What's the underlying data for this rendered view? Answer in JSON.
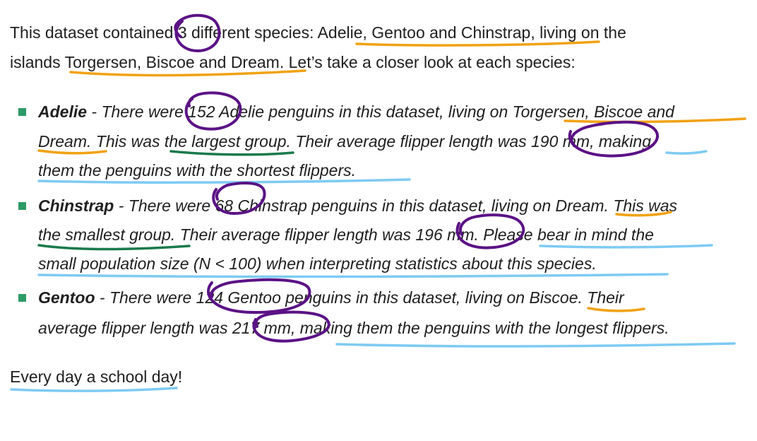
{
  "intro": {
    "line1": "This dataset contained 3 different species: Adelie, Gentoo and Chinstrap, living on the",
    "line2": "islands Torgersen, Biscoe and Dream. Let’s take a closer look at each species:"
  },
  "items": [
    {
      "name": "Adelie",
      "line1_rest": " - There were 152 Adelie penguins in this dataset, living on Torgersen, Biscoe and",
      "line2": "Dream. This was the largest group. Their average flipper length was 190 mm, making",
      "line3": "them the penguins with the shortest flippers."
    },
    {
      "name": "Chinstrap",
      "line1_rest": " - There were 68 Chinstrap penguins in this dataset, living on Dream. This was",
      "line2": "the smallest group. Their average flipper length was 196 mm. Please bear in mind the",
      "line3": "small population size (N < 100) when interpreting statistics about this species."
    },
    {
      "name": "Gentoo",
      "line1_rest": " - There were 124 Gentoo penguins in this dataset, living on Biscoe. Their",
      "line2": "average flipper length was 217 mm, making them the penguins with the longest flippers."
    }
  ],
  "closing": "Every day a school day!",
  "colors": {
    "bullet": "#2d9a66",
    "annotation_orange": "#f0a214",
    "annotation_green": "#1a7a4c",
    "annotation_blue": "#7ecbf2",
    "annotation_purple": "#5b1285"
  }
}
